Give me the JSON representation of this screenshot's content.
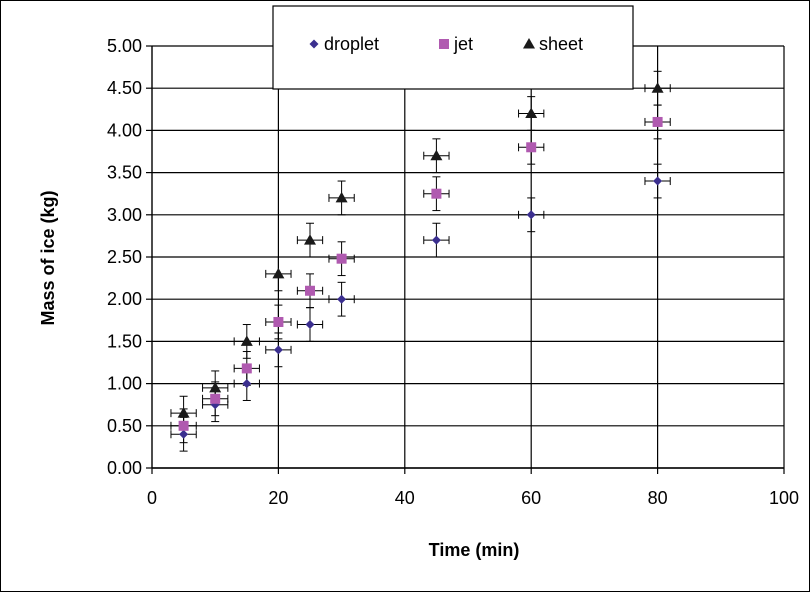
{
  "chart_data": {
    "type": "scatter",
    "title": "",
    "xlabel": "Time (min)",
    "ylabel": "Mass of ice (kg)",
    "xlim": [
      0,
      100
    ],
    "ylim": [
      0,
      5
    ],
    "x_ticks": [
      "0",
      "20",
      "40",
      "60",
      "80",
      "100"
    ],
    "y_ticks": [
      "0.00",
      "0.50",
      "1.00",
      "1.50",
      "2.00",
      "2.50",
      "3.00",
      "3.50",
      "4.00",
      "4.50",
      "5.00"
    ],
    "grid": true,
    "legend_position": "top",
    "error_bars": {
      "x": 2,
      "y": 0.2
    },
    "series": [
      {
        "name": "droplet",
        "marker": "diamond",
        "color": "#3B2F8F",
        "x": [
          5,
          10,
          15,
          20,
          25,
          30,
          45,
          60,
          80
        ],
        "y": [
          0.4,
          0.75,
          1.0,
          1.4,
          1.7,
          2.0,
          2.7,
          3.0,
          3.4
        ]
      },
      {
        "name": "jet",
        "marker": "square",
        "color": "#B05AB0",
        "x": [
          5,
          10,
          15,
          20,
          25,
          30,
          45,
          60,
          80
        ],
        "y": [
          0.5,
          0.82,
          1.18,
          1.73,
          2.1,
          2.48,
          3.25,
          3.8,
          4.1
        ]
      },
      {
        "name": "sheet",
        "marker": "triangle",
        "color": "#1A1A1A",
        "x": [
          5,
          10,
          15,
          20,
          25,
          30,
          45,
          60,
          80
        ],
        "y": [
          0.65,
          0.95,
          1.5,
          2.3,
          2.7,
          3.2,
          3.7,
          4.2,
          4.5
        ]
      }
    ]
  }
}
